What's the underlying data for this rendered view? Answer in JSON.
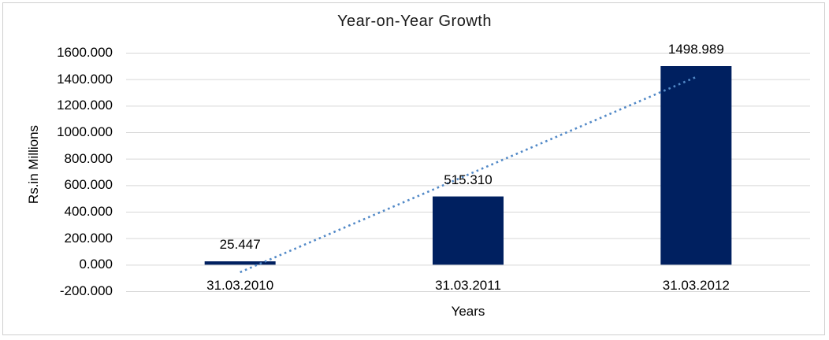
{
  "chart_data": {
    "type": "bar",
    "title": "Year-on-Year Growth",
    "xlabel": "Years",
    "ylabel": "Rs.in Millions",
    "categories": [
      "31.03.2010",
      "31.03.2011",
      "31.03.2012"
    ],
    "values": [
      25.447,
      515.31,
      1498.989
    ],
    "data_labels": [
      "25.447",
      "515.310",
      "1498.989"
    ],
    "ylim": [
      -200,
      1600
    ],
    "ytick_step": 200,
    "ytick_labels": [
      "-200.000",
      "0.000",
      "200.000",
      "400.000",
      "600.000",
      "800.000",
      "1000.000",
      "1200.000",
      "1400.000",
      "1600.000"
    ],
    "grid": true,
    "legend": "none",
    "trendline": {
      "kind": "linear",
      "style": "dotted"
    },
    "colors": {
      "bar": "#002060",
      "trendline": "#5289C7",
      "gridline": "#D6D6D6",
      "frame_border": "#CFCFCF",
      "text": "#000000",
      "background": "#FFFFFF"
    }
  }
}
